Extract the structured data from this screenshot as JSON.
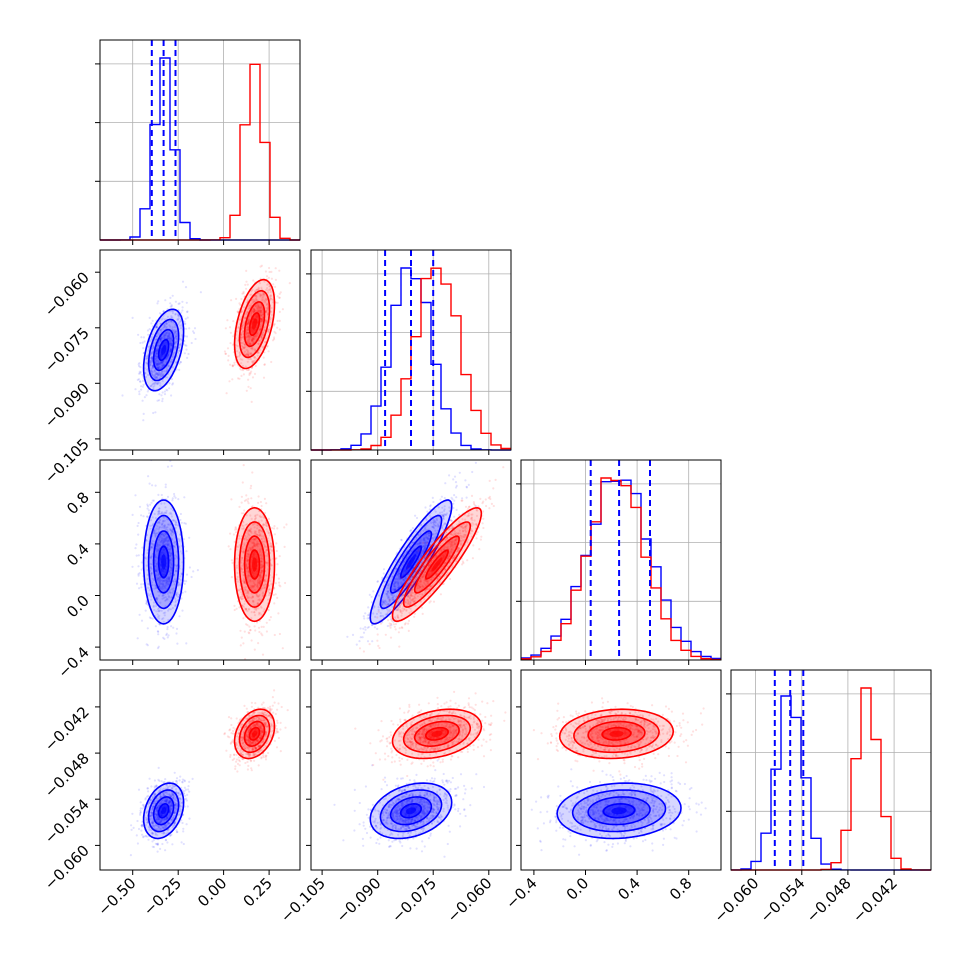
{
  "chart_data": {
    "type": "corner",
    "series": [
      {
        "name": "",
        "color": "#0000ff",
        "mean": [
          -0.33,
          -0.081,
          0.26,
          -0.0555
        ],
        "sd": [
          0.055,
          0.0055,
          0.24,
          0.0018
        ],
        "quantiles": [
          [
            -0.395,
            -0.33,
            -0.265
          ],
          [
            -0.088,
            -0.081,
            -0.075
          ],
          [
            0.04,
            0.26,
            0.5
          ],
          [
            -0.0575,
            -0.0555,
            -0.0538
          ]
        ]
      },
      {
        "name": "",
        "color": "#ff0000",
        "mean": [
          0.17,
          -0.074,
          0.24,
          -0.0455
        ],
        "sd": [
          0.055,
          0.006,
          0.22,
          0.0016
        ]
      }
    ],
    "correlation": {
      "0-1": 0.45,
      "0-2": 0.0,
      "0-3": 0.3,
      "1-2": 0.9,
      "1-3": 0.3,
      "2-3": 0.1
    },
    "axes": [
      {
        "range": [
          -0.68,
          0.42
        ],
        "ticks": [
          -0.5,
          -0.25,
          0.0,
          0.25
        ],
        "tick_labels": [
          "−0.50",
          "−0.25",
          "0.00",
          "0.25"
        ]
      },
      {
        "range": [
          -0.108,
          -0.054
        ],
        "ticks": [
          -0.105,
          -0.09,
          -0.075,
          -0.06
        ],
        "tick_labels": [
          "−0.105",
          "−0.090",
          "−0.075",
          "−0.060"
        ]
      },
      {
        "range": [
          -0.5,
          1.05
        ],
        "ticks": [
          -0.4,
          0.0,
          0.4,
          0.8
        ],
        "tick_labels": [
          "−0.4",
          "0.0",
          "0.4",
          "0.8"
        ]
      },
      {
        "range": [
          -0.0632,
          -0.0372
        ],
        "ticks": [
          -0.06,
          -0.054,
          -0.048,
          -0.042
        ],
        "tick_labels": [
          "−0.060",
          "−0.054",
          "−0.048",
          "−0.042"
        ]
      }
    ],
    "grid": true,
    "legend": "none"
  }
}
